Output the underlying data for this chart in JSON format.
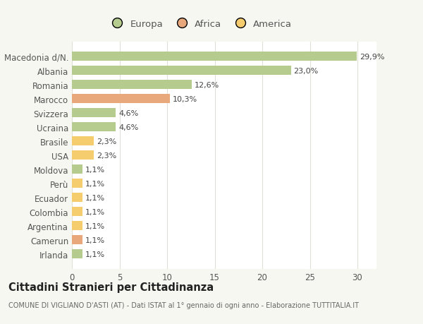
{
  "countries": [
    "Irlanda",
    "Camerun",
    "Argentina",
    "Colombia",
    "Ecuador",
    "Perù",
    "Moldova",
    "USA",
    "Brasile",
    "Ucraina",
    "Svizzera",
    "Marocco",
    "Romania",
    "Albania",
    "Macedonia d/N."
  ],
  "values": [
    1.1,
    1.1,
    1.1,
    1.1,
    1.1,
    1.1,
    1.1,
    2.3,
    2.3,
    4.6,
    4.6,
    10.3,
    12.6,
    23.0,
    29.9
  ],
  "labels": [
    "1,1%",
    "1,1%",
    "1,1%",
    "1,1%",
    "1,1%",
    "1,1%",
    "1,1%",
    "2,3%",
    "2,3%",
    "4,6%",
    "4,6%",
    "10,3%",
    "12,6%",
    "23,0%",
    "29,9%"
  ],
  "colors": [
    "#b5cc8e",
    "#e8a87c",
    "#f5cc6e",
    "#f5cc6e",
    "#f5cc6e",
    "#f5cc6e",
    "#b5cc8e",
    "#f5cc6e",
    "#f5cc6e",
    "#b5cc8e",
    "#b5cc8e",
    "#e8a87c",
    "#b5cc8e",
    "#b5cc8e",
    "#b5cc8e"
  ],
  "legend_colors": {
    "Europa": "#b5cc8e",
    "Africa": "#e8a87c",
    "America": "#f5cc6e"
  },
  "title": "Cittadini Stranieri per Cittadinanza",
  "subtitle": "COMUNE DI VIGLIANO D'ASTI (AT) - Dati ISTAT al 1° gennaio di ogni anno - Elaborazione TUTTITALIA.IT",
  "xlim": [
    0,
    32
  ],
  "xticks": [
    0,
    5,
    10,
    15,
    20,
    25,
    30
  ],
  "bg_color": "#f7f7f2",
  "plot_bg_color": "#ffffff",
  "grid_color": "#e0e0d8",
  "text_color": "#555555",
  "label_color": "#444444"
}
